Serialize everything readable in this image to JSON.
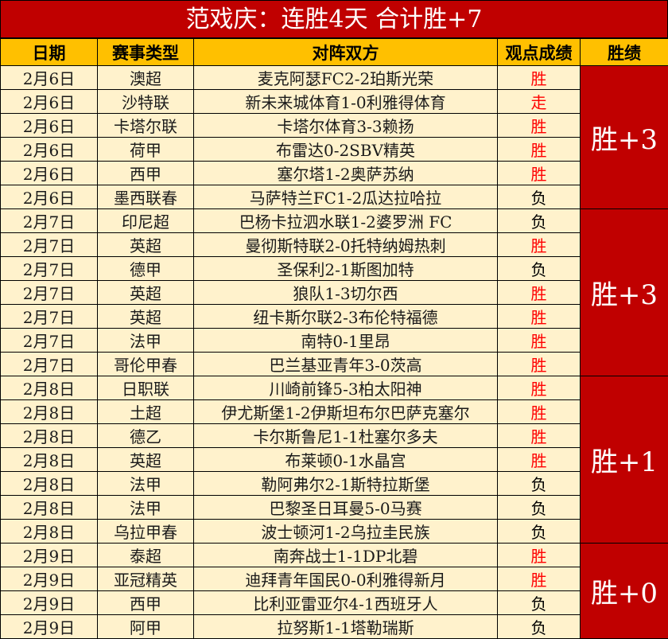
{
  "title": "范戏庆：连胜4天  合计胜+7",
  "headers": [
    "日期",
    "赛事类型",
    "对阵双方",
    "观点成绩",
    "胜绩"
  ],
  "colors": {
    "title_bg": "#C00000",
    "header_bg": "#FFC000",
    "cell_bg": "#FFF2CC",
    "win": "#FF0000",
    "total_bg": "#C00000"
  },
  "rows": [
    [
      "2月6日",
      "澳超",
      "麦克阿瑟FC2-2珀斯光荣",
      "胜"
    ],
    [
      "2月6日",
      "沙特联",
      "新未来城体育1-0利雅得体育",
      "走"
    ],
    [
      "2月6日",
      "卡塔尔联",
      "卡塔尔体育3-3赖扬",
      "胜"
    ],
    [
      "2月6日",
      "荷甲",
      "布雷达0-2SBV精英",
      "胜"
    ],
    [
      "2月6日",
      "西甲",
      "塞尔塔1-2奥萨苏纳",
      "胜"
    ],
    [
      "2月6日",
      "墨西联春",
      "马萨特兰FC1-2瓜达拉哈拉",
      "负"
    ],
    [
      "2月7日",
      "印尼超",
      "巴杨卡拉泗水联1-2婆罗洲 FC",
      "负"
    ],
    [
      "2月7日",
      "英超",
      "曼彻斯特联2-0托特纳姆热刺",
      "胜"
    ],
    [
      "2月7日",
      "德甲",
      "圣保利2-1斯图加特",
      "负"
    ],
    [
      "2月7日",
      "英超",
      "狼队1-3切尔西",
      "胜"
    ],
    [
      "2月7日",
      "英超",
      "纽卡斯尔联2-3布伦特福德",
      "胜"
    ],
    [
      "2月7日",
      "法甲",
      "南特0-1里昂",
      "胜"
    ],
    [
      "2月7日",
      "哥伦甲春",
      "巴兰基亚青年3-0茨高",
      "胜"
    ],
    [
      "2月8日",
      "日职联",
      "川崎前锋5-3柏太阳神",
      "胜"
    ],
    [
      "2月8日",
      "土超",
      "伊尤斯堡1-2伊斯坦布尔巴萨克塞尔",
      "胜"
    ],
    [
      "2月8日",
      "德乙",
      "卡尔斯鲁尼1-1杜塞尔多夫",
      "胜"
    ],
    [
      "2月8日",
      "英超",
      "布莱顿0-1水晶宫",
      "胜"
    ],
    [
      "2月8日",
      "法甲",
      "勒阿弗尔2-1斯特拉斯堡",
      "负"
    ],
    [
      "2月8日",
      "法甲",
      "巴黎圣日耳曼5-0马赛",
      "负"
    ],
    [
      "2月8日",
      "乌拉甲春",
      "波士顿河1-2乌拉圭民族",
      "负"
    ],
    [
      "2月9日",
      "泰超",
      "南奔战士1-1DP北碧",
      "胜"
    ],
    [
      "2月9日",
      "亚冠精英",
      "迪拜青年国民0-0利雅得新月",
      "胜"
    ],
    [
      "2月9日",
      "西甲",
      "比利亚雷亚尔4-1西班牙人",
      "负"
    ],
    [
      "2月9日",
      "阿甲",
      "拉努斯1-1塔勒瑞斯",
      "负"
    ]
  ],
  "totals": [
    {
      "label": "胜+3",
      "span": 6
    },
    {
      "label": "胜+3",
      "span": 7
    },
    {
      "label": "胜+1",
      "span": 7
    },
    {
      "label": "胜+0",
      "span": 4
    }
  ]
}
